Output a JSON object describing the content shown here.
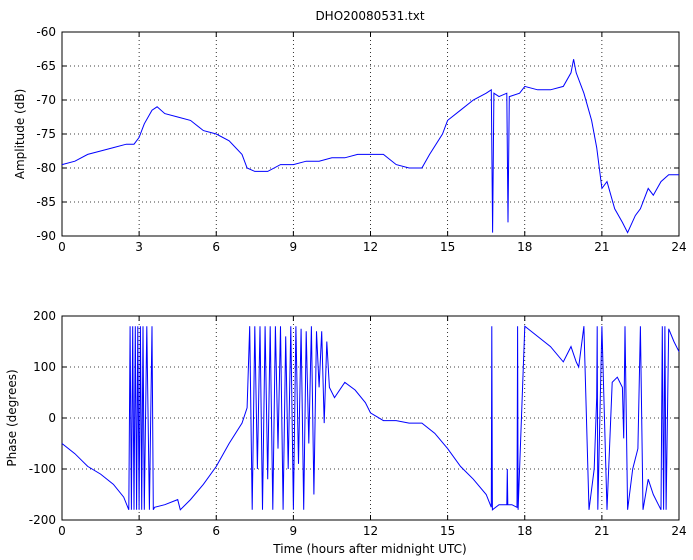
{
  "chart_data": [
    {
      "type": "line",
      "title": "DHO20080531.txt",
      "xlabel": "",
      "ylabel": "Amplitude (dB)",
      "xlim": [
        0,
        24
      ],
      "ylim": [
        -90,
        -60
      ],
      "xticks": [
        "0",
        "3",
        "6",
        "9",
        "12",
        "15",
        "18",
        "21",
        "24"
      ],
      "yticks": [
        "-60",
        "-65",
        "-70",
        "-75",
        "-80",
        "-85",
        "-90"
      ],
      "grid": true,
      "line_color": "#0000ff",
      "series": [
        {
          "x": [
            0,
            0.5,
            1,
            1.5,
            2,
            2.5,
            2.8,
            3,
            3.2,
            3.5,
            3.7,
            4,
            4.5,
            5,
            5.5,
            6,
            6.5,
            7,
            7.2,
            7.5,
            8,
            8.5,
            9,
            9.5,
            10,
            10.5,
            11,
            11.5,
            12,
            12.5,
            13,
            13.5,
            14,
            14.3,
            14.8,
            15,
            15.5,
            16,
            16.5,
            16.7,
            16.75,
            16.8,
            17,
            17.3,
            17.35,
            17.4,
            17.8,
            18,
            18.5,
            19,
            19.5,
            19.8,
            19.9,
            20,
            20.3,
            20.6,
            20.8,
            21,
            21.2,
            21.5,
            21.8,
            22,
            22.3,
            22.5,
            22.8,
            23,
            23.3,
            23.6,
            24
          ],
          "y": [
            -79.5,
            -79,
            -78,
            -77.5,
            -77,
            -76.5,
            -76.5,
            -75.5,
            -73.5,
            -71.5,
            -71,
            -72,
            -72.5,
            -73,
            -74.5,
            -75,
            -76,
            -78,
            -80,
            -80.5,
            -80.5,
            -79.5,
            -79.5,
            -79,
            -79,
            -78.5,
            -78.5,
            -78,
            -78,
            -78,
            -79.5,
            -80,
            -80,
            -78,
            -75,
            -73,
            -71.5,
            -70,
            -69,
            -68.5,
            -89.5,
            -69,
            -69.5,
            -69,
            -88,
            -69.5,
            -69,
            -68,
            -68.5,
            -68.5,
            -68,
            -66,
            -64,
            -66,
            -69,
            -73,
            -77,
            -83,
            -82,
            -86,
            -88,
            -89.5,
            -87,
            -86,
            -83,
            -84,
            -82,
            -81,
            -81
          ]
        }
      ]
    },
    {
      "type": "line",
      "title": "",
      "xlabel": "Time (hours after midnight UTC)",
      "ylabel": "Phase (degrees)",
      "xlim": [
        0,
        24
      ],
      "ylim": [
        -200,
        200
      ],
      "xticks": [
        "0",
        "3",
        "6",
        "9",
        "12",
        "15",
        "18",
        "21",
        "24"
      ],
      "yticks": [
        "200",
        "100",
        "0",
        "-100",
        "-200"
      ],
      "grid": true,
      "line_color": "#0000ff",
      "series": [
        {
          "x": [
            0,
            0.5,
            1,
            1.5,
            2,
            2.4,
            2.6,
            2.65,
            2.7,
            2.75,
            2.8,
            2.85,
            2.9,
            2.95,
            3,
            3.05,
            3.1,
            3.15,
            3.2,
            3.3,
            3.4,
            3.5,
            3.55,
            3.6,
            4,
            4.5,
            4.6,
            5,
            5.5,
            6,
            6.5,
            7,
            7.2,
            7.3,
            7.4,
            7.5,
            7.6,
            7.7,
            7.8,
            7.9,
            8,
            8.1,
            8.2,
            8.3,
            8.4,
            8.5,
            8.6,
            8.7,
            8.8,
            8.9,
            9,
            9.1,
            9.2,
            9.3,
            9.4,
            9.5,
            9.6,
            9.7,
            9.8,
            9.9,
            10,
            10.1,
            10.2,
            10.3,
            10.4,
            10.6,
            11,
            11.4,
            11.8,
            12,
            12.5,
            13,
            13.5,
            14,
            14.5,
            15,
            15.5,
            16,
            16.5,
            16.7,
            16.72,
            16.74,
            17,
            17.3,
            17.32,
            17.34,
            17.5,
            17.7,
            17.72,
            17.74,
            18,
            18.5,
            19,
            19.5,
            19.8,
            20,
            20.1,
            20.3,
            20.5,
            20.7,
            20.8,
            20.82,
            20.84,
            21,
            21.2,
            21.4,
            21.6,
            21.8,
            21.85,
            21.9,
            22,
            22.2,
            22.4,
            22.5,
            22.6,
            22.8,
            23,
            23.2,
            23.3,
            23.35,
            23.4,
            23.45,
            23.5,
            23.6,
            23.8,
            24
          ],
          "y": [
            -50,
            -70,
            -95,
            -110,
            -130,
            -155,
            -180,
            180,
            -180,
            180,
            -180,
            180,
            -180,
            180,
            -180,
            180,
            -180,
            180,
            -180,
            180,
            -180,
            180,
            -180,
            -175,
            -170,
            -160,
            -180,
            -160,
            -130,
            -95,
            -50,
            -10,
            20,
            180,
            -180,
            180,
            -100,
            180,
            -180,
            180,
            -120,
            180,
            -180,
            180,
            -60,
            180,
            -180,
            160,
            -100,
            180,
            -180,
            180,
            -90,
            175,
            -180,
            170,
            -50,
            180,
            -150,
            170,
            60,
            170,
            -10,
            150,
            60,
            40,
            70,
            55,
            30,
            10,
            -5,
            -5,
            -10,
            -10,
            -30,
            -60,
            -95,
            -120,
            -150,
            -175,
            180,
            -180,
            -170,
            -170,
            -100,
            -170,
            -170,
            -175,
            180,
            -180,
            180,
            160,
            140,
            110,
            140,
            110,
            100,
            180,
            -180,
            -100,
            40,
            180,
            -180,
            180,
            -180,
            70,
            80,
            60,
            -40,
            180,
            -180,
            -100,
            -60,
            180,
            -180,
            -120,
            -150,
            -170,
            -180,
            180,
            -180,
            180,
            -180,
            175,
            150,
            130
          ]
        }
      ]
    }
  ]
}
